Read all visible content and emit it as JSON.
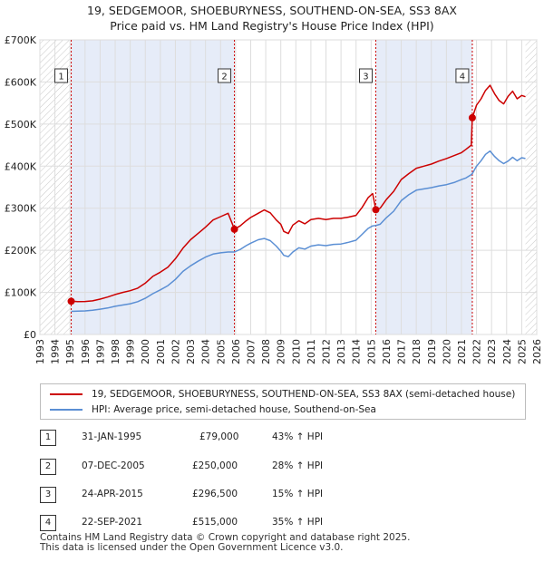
{
  "header": {
    "line1": "19, SEDGEMOOR, SHOEBURYNESS, SOUTHEND-ON-SEA, SS3 8AX",
    "line2": "Price paid vs. HM Land Registry's House Price Index (HPI)"
  },
  "colors": {
    "property": "#cc0000",
    "hpi": "#5b8fd4",
    "shade": "#e6ecf8",
    "hatch": "#c8c8c8"
  },
  "chart_data": {
    "type": "line",
    "x_range": [
      1993,
      2026
    ],
    "ylim": [
      0,
      700000
    ],
    "yticks": [
      0,
      100000,
      200000,
      300000,
      400000,
      500000,
      600000,
      700000
    ],
    "ytick_labels": [
      "£0",
      "£100K",
      "£200K",
      "£300K",
      "£400K",
      "£500K",
      "£600K",
      "£700K"
    ],
    "xticks": [
      "1993",
      "1994",
      "1995",
      "1996",
      "1997",
      "1998",
      "1999",
      "2000",
      "2001",
      "2002",
      "2003",
      "2004",
      "2005",
      "2006",
      "2007",
      "2008",
      "2009",
      "2010",
      "2011",
      "2012",
      "2013",
      "2014",
      "2015",
      "2016",
      "2017",
      "2018",
      "2019",
      "2020",
      "2021",
      "2022",
      "2023",
      "2024",
      "2025",
      "2026"
    ],
    "grid": true,
    "data_start": 1995.08,
    "data_end": 2025.25,
    "series": [
      {
        "name": "19, SEDGEMOOR, SHOEBURYNESS, SOUTHEND-ON-SEA, SS3 8AX (semi-detached house)",
        "color": "#cc0000",
        "x": [
          1995.08,
          1995.5,
          1996,
          1996.5,
          1997,
          1997.5,
          1998,
          1998.5,
          1999,
          1999.5,
          2000,
          2000.5,
          2001,
          2001.5,
          2002,
          2002.5,
          2003,
          2003.5,
          2004,
          2004.5,
          2005,
          2005.5,
          2005.92,
          2006.3,
          2006.7,
          2007,
          2007.5,
          2007.9,
          2008.3,
          2008.7,
          2009,
          2009.2,
          2009.5,
          2009.8,
          2010.2,
          2010.6,
          2011,
          2011.5,
          2012,
          2012.5,
          2013,
          2013.5,
          2014,
          2014.4,
          2014.8,
          2015.1,
          2015.31,
          2015.6,
          2016,
          2016.5,
          2017,
          2017.5,
          2018,
          2018.5,
          2019,
          2019.5,
          2020,
          2020.5,
          2021,
          2021.3,
          2021.65,
          2021.72,
          2022,
          2022.3,
          2022.6,
          2022.9,
          2023.2,
          2023.5,
          2023.8,
          2024.1,
          2024.4,
          2024.7,
          2025,
          2025.25
        ],
        "y": [
          79000,
          78000,
          78500,
          80000,
          84000,
          89000,
          95000,
          100000,
          104000,
          110000,
          122000,
          138000,
          148000,
          160000,
          180000,
          205000,
          225000,
          240000,
          255000,
          272000,
          280000,
          288000,
          250000,
          258000,
          270000,
          278000,
          288000,
          296000,
          289000,
          272000,
          262000,
          245000,
          240000,
          260000,
          270000,
          263000,
          273000,
          276000,
          273000,
          276000,
          276000,
          279000,
          283000,
          302000,
          325000,
          335000,
          296500,
          300000,
          320000,
          340000,
          368000,
          382000,
          395000,
          400000,
          405000,
          412000,
          418000,
          425000,
          432000,
          440000,
          450000,
          515000,
          545000,
          560000,
          580000,
          592000,
          572000,
          556000,
          548000,
          566000,
          578000,
          560000,
          568000,
          565000
        ]
      },
      {
        "name": "HPI: Average price, semi-detached house, Southend-on-Sea",
        "color": "#5b8fd4",
        "x": [
          1995.08,
          1995.5,
          1996,
          1996.5,
          1997,
          1997.5,
          1998,
          1998.5,
          1999,
          1999.5,
          2000,
          2000.5,
          2001,
          2001.5,
          2002,
          2002.5,
          2003,
          2003.5,
          2004,
          2004.5,
          2005,
          2005.5,
          2005.92,
          2006.3,
          2006.7,
          2007,
          2007.5,
          2007.9,
          2008.3,
          2008.7,
          2009,
          2009.2,
          2009.5,
          2009.8,
          2010.2,
          2010.6,
          2011,
          2011.5,
          2012,
          2012.5,
          2013,
          2013.5,
          2014,
          2014.4,
          2014.8,
          2015.1,
          2015.31,
          2015.6,
          2016,
          2016.5,
          2017,
          2017.5,
          2018,
          2018.5,
          2019,
          2019.5,
          2020,
          2020.5,
          2021,
          2021.3,
          2021.65,
          2021.72,
          2022,
          2022.3,
          2022.6,
          2022.9,
          2023.2,
          2023.5,
          2023.8,
          2024.1,
          2024.4,
          2024.7,
          2025,
          2025.25
        ],
        "y": [
          55000,
          55500,
          56000,
          57500,
          60000,
          63000,
          67000,
          70000,
          73000,
          78000,
          86000,
          97000,
          106000,
          116000,
          131000,
          150000,
          163000,
          174000,
          184000,
          191000,
          194000,
          196000,
          196000,
          202000,
          211000,
          217000,
          225000,
          228000,
          223000,
          210000,
          198000,
          188000,
          185000,
          196000,
          206000,
          203000,
          210000,
          213000,
          211000,
          214000,
          215000,
          219000,
          224000,
          238000,
          252000,
          258000,
          259000,
          262000,
          277000,
          293000,
          318000,
          332000,
          343000,
          346000,
          349000,
          353000,
          356000,
          361000,
          368000,
          372000,
          380000,
          382000,
          400000,
          413000,
          428000,
          436000,
          423000,
          413000,
          406000,
          412000,
          421000,
          413000,
          420000,
          418000
        ]
      }
    ],
    "shaded_intervals": [
      [
        1995.08,
        2005.92
      ],
      [
        2015.31,
        2021.72
      ]
    ],
    "sales": [
      {
        "id": "1",
        "x": 1995.08,
        "value": 79000
      },
      {
        "id": "2",
        "x": 2005.92,
        "value": 250000
      },
      {
        "id": "3",
        "x": 2015.31,
        "value": 296500
      },
      {
        "id": "4",
        "x": 2021.72,
        "value": 515000
      }
    ]
  },
  "legend": {
    "property_label": "19, SEDGEMOOR, SHOEBURYNESS, SOUTHEND-ON-SEA, SS3 8AX (semi-detached house)",
    "hpi_label": "HPI: Average price, semi-detached house, Southend-on-Sea"
  },
  "sales_table": [
    {
      "id": "1",
      "date": "31-JAN-1995",
      "price": "£79,000",
      "hpi": "43% ↑ HPI"
    },
    {
      "id": "2",
      "date": "07-DEC-2005",
      "price": "£250,000",
      "hpi": "28% ↑ HPI"
    },
    {
      "id": "3",
      "date": "24-APR-2015",
      "price": "£296,500",
      "hpi": "15% ↑ HPI"
    },
    {
      "id": "4",
      "date": "22-SEP-2021",
      "price": "£515,000",
      "hpi": "35% ↑ HPI"
    }
  ],
  "footer": {
    "line1": "Contains HM Land Registry data © Crown copyright and database right 2025.",
    "line2": "This data is licensed under the Open Government Licence v3.0."
  }
}
